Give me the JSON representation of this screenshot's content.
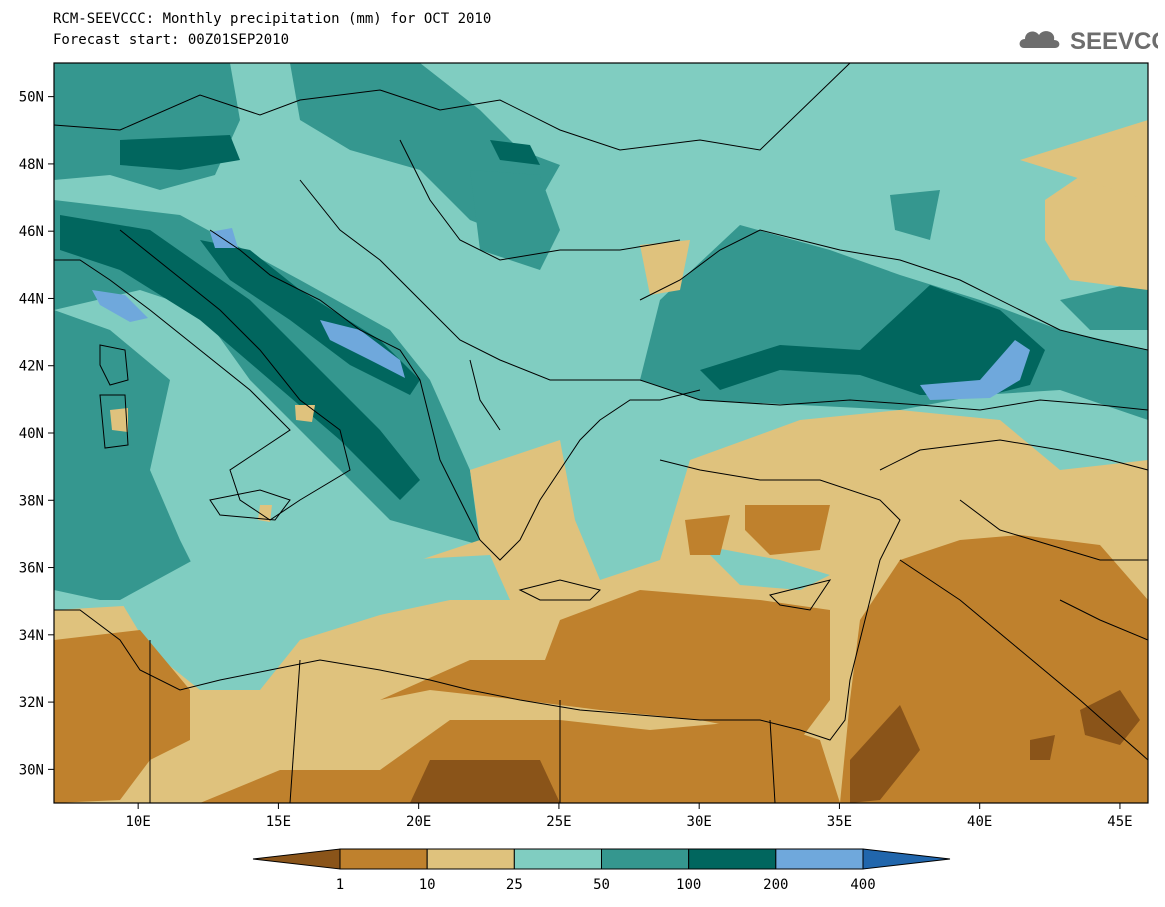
{
  "header": {
    "title_line1": "RCM-SEEVCCC: Monthly precipitation (mm) for OCT 2010",
    "title_line2": "Forecast start: 00Z01SEP2010",
    "logo_text": "SEEVCCC"
  },
  "map": {
    "lat_ticks": [
      "50N",
      "48N",
      "46N",
      "44N",
      "42N",
      "40N",
      "38N",
      "36N",
      "34N",
      "32N",
      "30N"
    ],
    "lon_ticks": [
      "10E",
      "15E",
      "20E",
      "25E",
      "30E",
      "35E",
      "40E",
      "45E"
    ],
    "lat_values": [
      50,
      48,
      46,
      44,
      42,
      40,
      38,
      36,
      34,
      32,
      30
    ],
    "lon_values": [
      10,
      15,
      20,
      25,
      30,
      35,
      40,
      45
    ]
  },
  "colorbar": {
    "labels": [
      "1",
      "10",
      "25",
      "50",
      "100",
      "200",
      "400"
    ],
    "colors": [
      "#8a5419",
      "#bf812d",
      "#dfc27d",
      "#80cdc1",
      "#35978f",
      "#01665e",
      "#6fa8dc",
      "#2166ac"
    ]
  }
}
